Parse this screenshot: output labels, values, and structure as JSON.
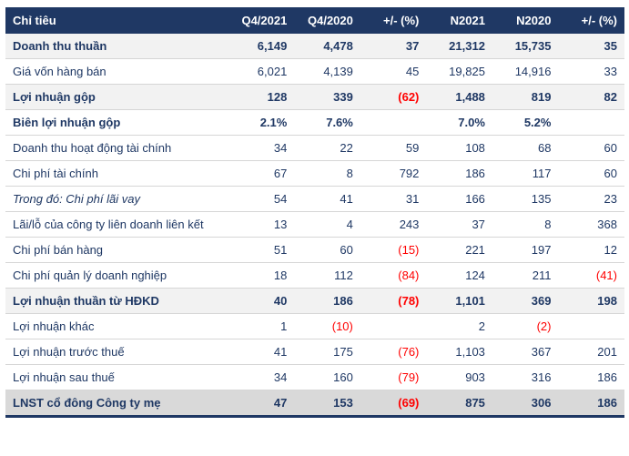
{
  "colors": {
    "header_bg": "#1F3864",
    "header_text": "#FFFFFF",
    "body_text": "#1F3864",
    "negative_text": "#FF0000",
    "shaded_row_bg": "#F2F2F2",
    "footer_row_bg": "#D9D9D9",
    "row_border": "#D6D6D6",
    "bottom_border": "#1F3864"
  },
  "chart_data": {
    "type": "table",
    "title": "",
    "columns": [
      "Chỉ tiêu",
      "Q4/2021",
      "Q4/2020",
      "+/- (%)",
      "N2021",
      "N2020",
      "+/- (%)"
    ],
    "rows": [
      {
        "label": "Doanh thu thuần",
        "style": "shaded",
        "values": [
          "6,149",
          "4,478",
          "37",
          "21,312",
          "15,735",
          "35"
        ]
      },
      {
        "label": "Giá vốn hàng bán",
        "style": "plain",
        "values": [
          "6,021",
          "4,139",
          "45",
          "19,825",
          "14,916",
          "33"
        ]
      },
      {
        "label": "Lợi nhuận gộp",
        "style": "shaded",
        "values": [
          "128",
          "339",
          "(62)",
          "1,488",
          "819",
          "82"
        ]
      },
      {
        "label": "Biên lợi nhuận gộp",
        "style": "bold",
        "values": [
          "2.1%",
          "7.6%",
          "",
          "7.0%",
          "5.2%",
          ""
        ]
      },
      {
        "label": "Doanh thu hoạt động tài chính",
        "style": "plain",
        "values": [
          "34",
          "22",
          "59",
          "108",
          "68",
          "60"
        ]
      },
      {
        "label": "Chi phí tài chính",
        "style": "plain",
        "values": [
          "67",
          "8",
          "792",
          "186",
          "117",
          "60"
        ]
      },
      {
        "label": "Trong đó: Chi phí lãi vay",
        "style": "italic",
        "values": [
          "54",
          "41",
          "31",
          "166",
          "135",
          "23"
        ]
      },
      {
        "label": "Lãi/lỗ của công ty liên doanh liên kết",
        "style": "plain",
        "values": [
          "13",
          "4",
          "243",
          "37",
          "8",
          "368"
        ]
      },
      {
        "label": "Chi phí bán hàng",
        "style": "plain",
        "values": [
          "51",
          "60",
          "(15)",
          "221",
          "197",
          "12"
        ]
      },
      {
        "label": "Chi phí quản lý doanh nghiệp",
        "style": "plain",
        "values": [
          "18",
          "112",
          "(84)",
          "124",
          "211",
          "(41)"
        ]
      },
      {
        "label": "Lợi nhuận thuần từ HĐKD",
        "style": "shaded",
        "values": [
          "40",
          "186",
          "(78)",
          "1,101",
          "369",
          "198"
        ]
      },
      {
        "label": "Lợi nhuận khác",
        "style": "plain",
        "values": [
          "1",
          "(10)",
          "",
          "2",
          "(2)",
          ""
        ]
      },
      {
        "label": "Lợi nhuận trước thuế",
        "style": "plain",
        "values": [
          "41",
          "175",
          "(76)",
          "1,103",
          "367",
          "201"
        ]
      },
      {
        "label": "Lợi nhuận sau thuế",
        "style": "plain",
        "values": [
          "34",
          "160",
          "(79)",
          "903",
          "316",
          "186"
        ]
      },
      {
        "label": "LNST cổ đông Công ty mẹ",
        "style": "footer",
        "values": [
          "47",
          "153",
          "(69)",
          "875",
          "306",
          "186"
        ]
      }
    ]
  }
}
